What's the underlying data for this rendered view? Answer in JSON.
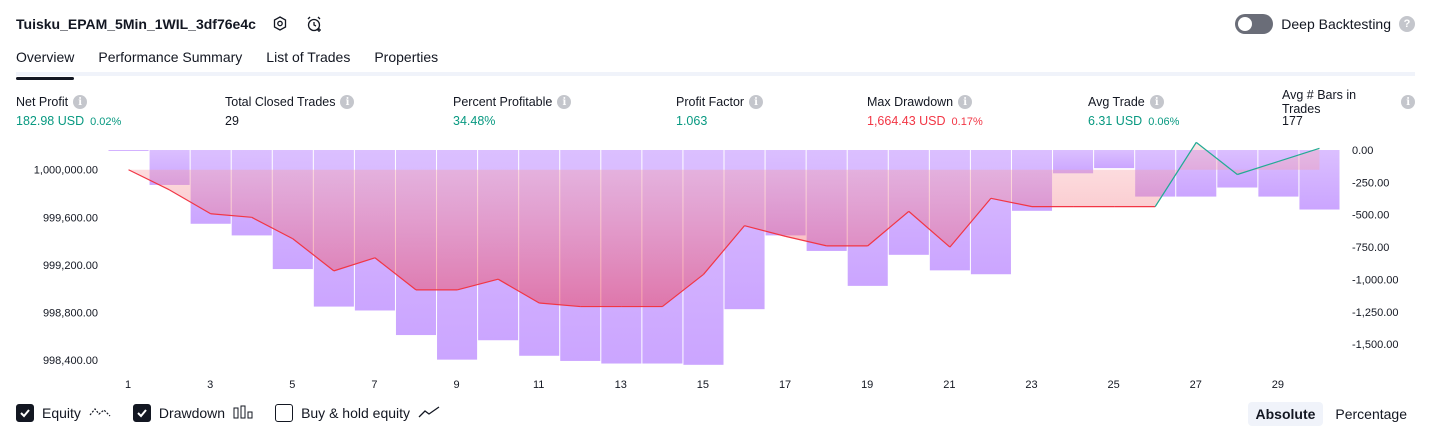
{
  "header": {
    "strategy_name": "Tuisku_EPAM_5Min_1WIL_3df76e4c",
    "deep_backtesting_label": "Deep Backtesting",
    "help_glyph": "?"
  },
  "tabs": [
    {
      "label": "Overview",
      "active": true
    },
    {
      "label": "Performance Summary",
      "active": false
    },
    {
      "label": "List of Trades",
      "active": false
    },
    {
      "label": "Properties",
      "active": false
    }
  ],
  "stats": [
    {
      "label": "Net Profit",
      "value": "182.98 USD",
      "pct": "0.02%",
      "tone": "pos"
    },
    {
      "label": "Total Closed Trades",
      "value": "29",
      "pct": "",
      "tone": "plain"
    },
    {
      "label": "Percent Profitable",
      "value": "34.48%",
      "pct": "",
      "tone": "pos"
    },
    {
      "label": "Profit Factor",
      "value": "1.063",
      "pct": "",
      "tone": "pos"
    },
    {
      "label": "Max Drawdown",
      "value": "1,664.43 USD",
      "pct": "0.17%",
      "tone": "neg"
    },
    {
      "label": "Avg Trade",
      "value": "6.31 USD",
      "pct": "0.06%",
      "tone": "pos"
    },
    {
      "label": "Avg # Bars in Trades",
      "value": "177",
      "pct": "",
      "tone": "plain"
    }
  ],
  "info_glyph": "i",
  "chart_data": {
    "type": "line",
    "x": [
      1,
      2,
      3,
      4,
      5,
      6,
      7,
      8,
      9,
      10,
      11,
      12,
      13,
      14,
      15,
      16,
      17,
      18,
      19,
      20,
      21,
      22,
      23,
      24,
      25,
      26,
      27,
      28,
      29,
      30
    ],
    "xticks": [
      "1",
      "3",
      "5",
      "7",
      "9",
      "11",
      "13",
      "15",
      "17",
      "19",
      "21",
      "23",
      "25",
      "27",
      "29"
    ],
    "left_axis_ticks": [
      "1,000,000.00",
      "999,600.00",
      "999,200.00",
      "998,800.00",
      "998,400.00"
    ],
    "right_axis_ticks": [
      "0.00",
      "-250.00",
      "-500.00",
      "-750.00",
      "-1,000.00",
      "-1,250.00",
      "-1,500.00"
    ],
    "left_ylim": [
      998300,
      1000250
    ],
    "right_ylim": [
      -1700,
      0
    ],
    "series": [
      {
        "name": "Equity",
        "axis": "left",
        "color": "#f23645",
        "profit_color": "#22ab94",
        "values": [
          1000000,
          999830,
          999630,
          999600,
          999420,
          999150,
          999260,
          998990,
          998990,
          999080,
          998880,
          998850,
          998850,
          998850,
          999120,
          999530,
          999440,
          999360,
          999360,
          999650,
          999350,
          999760,
          999690,
          999690,
          999690,
          999690,
          1000230,
          999960,
          1000070,
          1000180
        ]
      },
      {
        "name": "Drawdown",
        "axis": "right",
        "color": "#c5a3ff",
        "values": [
          0,
          -270,
          -570,
          -660,
          -920,
          -1210,
          -1240,
          -1430,
          -1620,
          -1470,
          -1590,
          -1630,
          -1650,
          -1650,
          -1660,
          -1230,
          -660,
          -780,
          -1050,
          -810,
          -930,
          -960,
          -470,
          -180,
          -140,
          -360,
          -360,
          -290,
          -360,
          -460
        ]
      }
    ]
  },
  "legend": [
    {
      "label": "Equity",
      "checked": true,
      "icon": "equity-line-icon"
    },
    {
      "label": "Drawdown",
      "checked": true,
      "icon": "drawdown-bars-icon"
    },
    {
      "label": "Buy & hold equity",
      "checked": false,
      "icon": "buy-hold-line-icon"
    }
  ],
  "modes": [
    {
      "label": "Absolute",
      "active": true
    },
    {
      "label": "Percentage",
      "active": false
    }
  ]
}
